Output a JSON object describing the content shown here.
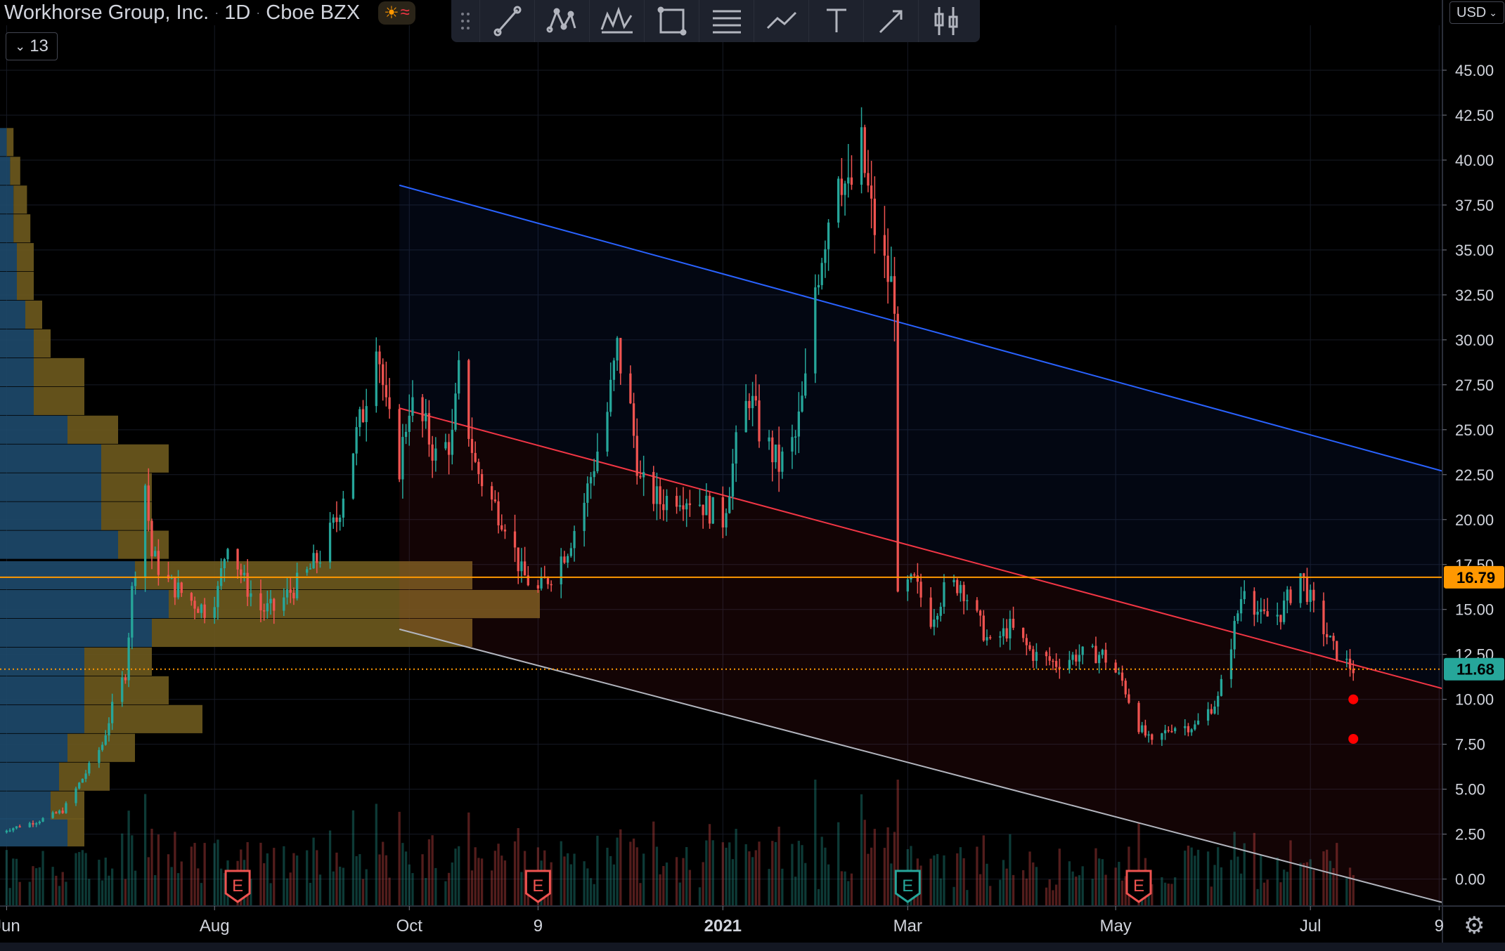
{
  "header": {
    "symbol_name": "Workhorse Group, Inc.",
    "interval": "1D",
    "exchange": "Cboe BZX"
  },
  "legend_toggle": {
    "label": "13",
    "icon": "chevron-down-icon"
  },
  "currency_button": {
    "label": "USD"
  },
  "toolbar": {
    "tools": [
      {
        "icon": "trend-line-icon"
      },
      {
        "icon": "xabcd-pattern-icon"
      },
      {
        "icon": "elliott-wave-icon"
      },
      {
        "icon": "rectangle-icon"
      },
      {
        "icon": "fib-retracement-icon"
      },
      {
        "icon": "path-icon"
      },
      {
        "icon": "text-icon"
      },
      {
        "icon": "arrow-icon"
      },
      {
        "icon": "long-position-icon"
      }
    ]
  },
  "colors": {
    "background": "#000000",
    "grid": "#161a25",
    "up_candle": "#26a69a",
    "down_candle": "#ef5350",
    "upper_channel": "#2962ff",
    "middle_channel": "#f23645",
    "lower_channel": "#b2b5be",
    "horizontal_level": "#ff9800",
    "last_price_line": "#ff9800",
    "volume_profile_up": "#1e4a6d",
    "volume_profile_down": "#6e5a1e",
    "volume_ma": "#2962ff"
  },
  "chart_data": {
    "type": "candlestick",
    "price_axis": {
      "ticks": [
        "45.00",
        "42.50",
        "40.00",
        "37.50",
        "35.00",
        "32.50",
        "30.00",
        "27.50",
        "25.00",
        "22.50",
        "20.00",
        "17.50",
        "15.00",
        "12.50",
        "10.00",
        "7.50",
        "5.00",
        "2.50",
        "0.00"
      ],
      "ylim": [
        -1.5,
        47.5
      ]
    },
    "time_axis": {
      "ticks": [
        {
          "label": "Jun",
          "date": "2020-06-01"
        },
        {
          "label": "Aug",
          "date": "2020-08-03"
        },
        {
          "label": "Oct",
          "date": "2020-10-01"
        },
        {
          "label": "9",
          "date": "2020-11-09"
        },
        {
          "label": "2021",
          "date": "2021-01-04"
        },
        {
          "label": "Mar",
          "date": "2021-03-01"
        },
        {
          "label": "May",
          "date": "2021-05-03"
        },
        {
          "label": "Jul",
          "date": "2021-07-01"
        },
        {
          "label": "9",
          "date": "2021-08-09"
        }
      ],
      "xlim": [
        "2020-05-30",
        "2021-08-10"
      ]
    },
    "price_labels": [
      {
        "value": 16.79,
        "label": "16.79",
        "color": "#ff9800"
      },
      {
        "value": 11.68,
        "label": "11.68",
        "color": "#26a69a"
      }
    ],
    "horizontal_level": 16.79,
    "last_price": 11.68,
    "close_path": [
      [
        "2020-05-29",
        2.6
      ],
      [
        "2020-06-10",
        3.2
      ],
      [
        "2020-06-18",
        3.8
      ],
      [
        "2020-06-24",
        5.6
      ],
      [
        "2020-06-30",
        7.5
      ],
      [
        "2020-07-03",
        9.5
      ],
      [
        "2020-07-07",
        11.5
      ],
      [
        "2020-07-09",
        16.0
      ],
      [
        "2020-07-13",
        22.0
      ],
      [
        "2020-07-15",
        18.0
      ],
      [
        "2020-07-20",
        16.5
      ],
      [
        "2020-07-27",
        15.5
      ],
      [
        "2020-07-31",
        15.0
      ],
      [
        "2020-08-04",
        16.0
      ],
      [
        "2020-08-07",
        19.0
      ],
      [
        "2020-08-12",
        16.5
      ],
      [
        "2020-08-17",
        15.0
      ],
      [
        "2020-08-21",
        15.0
      ],
      [
        "2020-08-26",
        16.0
      ],
      [
        "2020-08-31",
        17.0
      ],
      [
        "2020-09-04",
        18.0
      ],
      [
        "2020-09-09",
        20.0
      ],
      [
        "2020-09-14",
        24.0
      ],
      [
        "2020-09-17",
        26.0
      ],
      [
        "2020-09-21",
        30.5
      ],
      [
        "2020-09-24",
        26.0
      ],
      [
        "2020-09-28",
        23.0
      ],
      [
        "2020-10-01",
        26.5
      ],
      [
        "2020-10-06",
        25.0
      ],
      [
        "2020-10-09",
        23.5
      ],
      [
        "2020-10-14",
        24.5
      ],
      [
        "2020-10-16",
        28.0
      ],
      [
        "2020-10-21",
        23.0
      ],
      [
        "2020-10-26",
        21.0
      ],
      [
        "2020-10-30",
        20.0
      ],
      [
        "2020-11-04",
        17.0
      ],
      [
        "2020-11-09",
        16.0
      ],
      [
        "2020-11-13",
        17.0
      ],
      [
        "2020-11-18",
        18.5
      ],
      [
        "2020-11-23",
        21.0
      ],
      [
        "2020-11-30",
        26.0
      ],
      [
        "2020-12-03",
        29.5
      ],
      [
        "2020-12-07",
        26.0
      ],
      [
        "2020-12-10",
        22.0
      ],
      [
        "2020-12-16",
        21.0
      ],
      [
        "2020-12-22",
        21.5
      ],
      [
        "2020-12-28",
        21.0
      ],
      [
        "2021-01-04",
        20.0
      ],
      [
        "2021-01-08",
        24.0
      ],
      [
        "2021-01-12",
        27.0
      ],
      [
        "2021-01-15",
        25.0
      ],
      [
        "2021-01-21",
        23.0
      ],
      [
        "2021-01-26",
        24.5
      ],
      [
        "2021-01-29",
        27.5
      ],
      [
        "2021-02-01",
        33.0
      ],
      [
        "2021-02-04",
        36.0
      ],
      [
        "2021-02-08",
        40.0
      ],
      [
        "2021-02-11",
        38.0
      ],
      [
        "2021-02-15",
        40.5
      ],
      [
        "2021-02-18",
        37.0
      ],
      [
        "2021-02-22",
        34.0
      ],
      [
        "2021-02-25",
        32.5
      ],
      [
        "2021-02-26",
        16.0
      ],
      [
        "2021-03-03",
        16.5
      ],
      [
        "2021-03-08",
        14.5
      ],
      [
        "2021-03-12",
        16.0
      ],
      [
        "2021-03-17",
        16.5
      ],
      [
        "2021-03-22",
        14.5
      ],
      [
        "2021-03-26",
        13.0
      ],
      [
        "2021-04-01",
        14.0
      ],
      [
        "2021-04-08",
        12.5
      ],
      [
        "2021-04-15",
        12.0
      ],
      [
        "2021-04-22",
        12.5
      ],
      [
        "2021-04-29",
        12.5
      ],
      [
        "2021-05-05",
        11.0
      ],
      [
        "2021-05-10",
        8.5
      ],
      [
        "2021-05-14",
        7.5
      ],
      [
        "2021-05-20",
        8.5
      ],
      [
        "2021-05-27",
        8.5
      ],
      [
        "2021-06-03",
        10.0
      ],
      [
        "2021-06-08",
        14.0
      ],
      [
        "2021-06-11",
        16.5
      ],
      [
        "2021-06-16",
        14.5
      ],
      [
        "2021-06-22",
        14.8
      ],
      [
        "2021-06-28",
        17.0
      ],
      [
        "2021-07-02",
        15.0
      ],
      [
        "2021-07-08",
        12.8
      ],
      [
        "2021-07-12",
        12.0
      ],
      [
        "2021-07-14",
        11.68
      ]
    ],
    "channel": {
      "upper": [
        [
          "2020-09-28",
          38.6
        ],
        [
          "2021-08-10",
          22.7
        ]
      ],
      "middle": [
        [
          "2020-09-28",
          26.2
        ],
        [
          "2021-08-10",
          10.6
        ]
      ],
      "lower": [
        [
          "2020-09-28",
          13.9
        ],
        [
          "2021-08-10",
          -1.3
        ]
      ]
    },
    "projected_targets": [
      {
        "date": "2021-07-14",
        "value": 10.0
      },
      {
        "date": "2021-07-14",
        "value": 7.8
      }
    ],
    "earnings_markers": [
      {
        "date": "2020-08-10",
        "label": "E",
        "color": "#ef5350"
      },
      {
        "date": "2020-11-09",
        "label": "E",
        "color": "#ef5350"
      },
      {
        "date": "2021-03-01",
        "label": "E",
        "color": "#26a69a"
      },
      {
        "date": "2021-05-10",
        "label": "E",
        "color": "#ef5350"
      }
    ],
    "volume_profile_rows": [
      {
        "price": 2.6,
        "up": 0.04,
        "down": 0.01
      },
      {
        "price": 4.1,
        "up": 0.03,
        "down": 0.02
      },
      {
        "price": 5.7,
        "up": 0.035,
        "down": 0.03
      },
      {
        "price": 7.3,
        "up": 0.04,
        "down": 0.04
      },
      {
        "price": 8.9,
        "up": 0.05,
        "down": 0.07
      },
      {
        "price": 10.5,
        "up": 0.05,
        "down": 0.05
      },
      {
        "price": 12.1,
        "up": 0.05,
        "down": 0.04
      },
      {
        "price": 13.7,
        "up": 0.09,
        "down": 0.19
      },
      {
        "price": 15.3,
        "up": 0.1,
        "down": 0.22
      },
      {
        "price": 16.9,
        "up": 0.08,
        "down": 0.2
      },
      {
        "price": 18.6,
        "up": 0.07,
        "down": 0.03
      },
      {
        "price": 20.2,
        "up": 0.06,
        "down": 0.03
      },
      {
        "price": 21.8,
        "up": 0.06,
        "down": 0.03
      },
      {
        "price": 23.4,
        "up": 0.06,
        "down": 0.04
      },
      {
        "price": 25.0,
        "up": 0.04,
        "down": 0.03
      },
      {
        "price": 26.6,
        "up": 0.02,
        "down": 0.03
      },
      {
        "price": 28.2,
        "up": 0.02,
        "down": 0.03
      },
      {
        "price": 29.8,
        "up": 0.02,
        "down": 0.01
      },
      {
        "price": 31.4,
        "up": 0.015,
        "down": 0.01
      },
      {
        "price": 33.0,
        "up": 0.01,
        "down": 0.01
      },
      {
        "price": 34.6,
        "up": 0.01,
        "down": 0.01
      },
      {
        "price": 36.2,
        "up": 0.008,
        "down": 0.01
      },
      {
        "price": 37.8,
        "up": 0.008,
        "down": 0.008
      },
      {
        "price": 39.4,
        "up": 0.006,
        "down": 0.006
      },
      {
        "price": 41.0,
        "up": 0.004,
        "down": 0.004
      }
    ],
    "grid": true
  }
}
